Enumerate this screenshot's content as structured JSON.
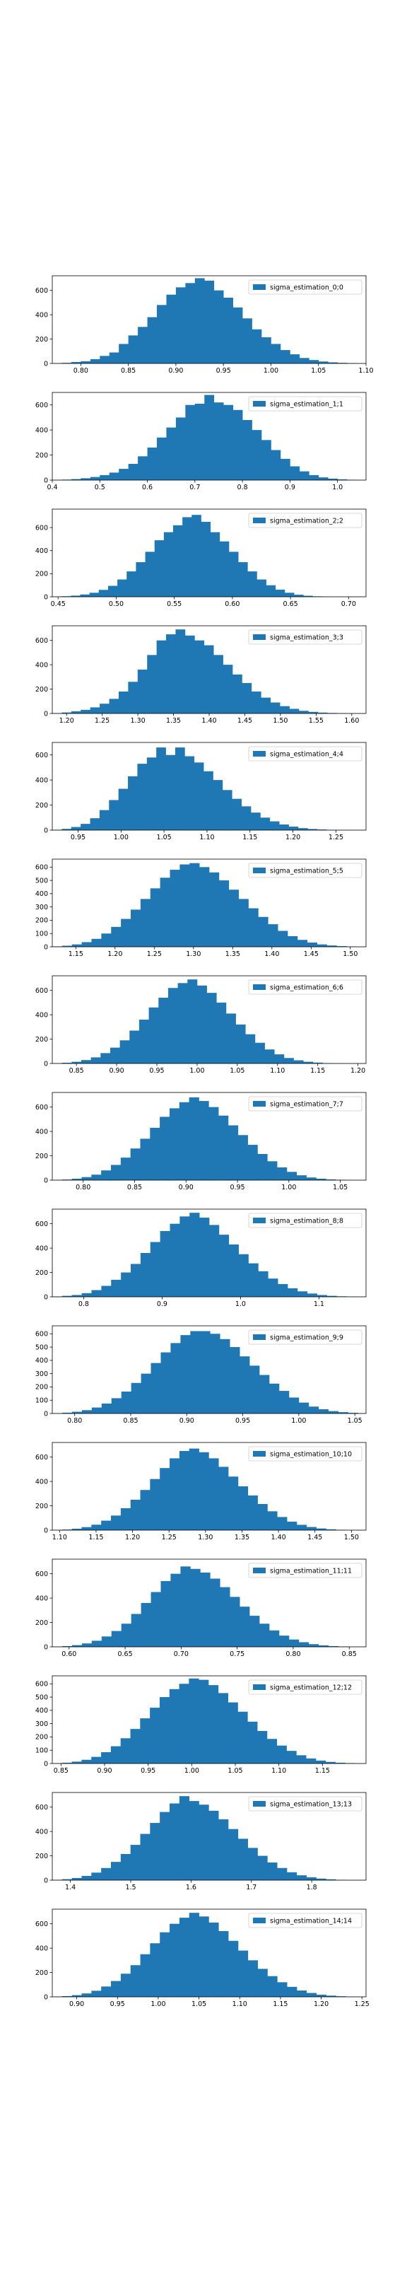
{
  "style": {
    "bar_color": "#1f77b4",
    "axis_color": "#000000",
    "background": "#ffffff"
  },
  "chart_data": [
    {
      "type": "bar",
      "legend": "sigma_estimation_0;0",
      "legend_loc": "upper right",
      "xlim": [
        0.77,
        1.1
      ],
      "ylim": [
        0,
        720
      ],
      "xticks": [
        0.8,
        0.85,
        0.9,
        0.95,
        1.0,
        1.05,
        1.1
      ],
      "xtick_labels": [
        "0.80",
        "0.85",
        "0.90",
        "0.95",
        "1.00",
        "1.05",
        "1.10"
      ],
      "yticks": [
        0,
        200,
        400,
        600
      ],
      "ytick_labels": [
        "0",
        "200",
        "400",
        "600"
      ],
      "bin_start": 0.77,
      "bin_width": 0.01,
      "values": [
        2,
        5,
        12,
        18,
        35,
        62,
        90,
        160,
        230,
        300,
        380,
        480,
        565,
        625,
        660,
        700,
        680,
        600,
        540,
        460,
        370,
        280,
        215,
        160,
        110,
        75,
        45,
        28,
        16,
        9,
        5,
        3,
        1
      ]
    },
    {
      "type": "bar",
      "legend": "sigma_estimation_1;1",
      "legend_loc": "upper right",
      "xlim": [
        0.4,
        1.06
      ],
      "ylim": [
        0,
        700
      ],
      "xticks": [
        0.4,
        0.5,
        0.6,
        0.7,
        0.8,
        0.9,
        1.0
      ],
      "xtick_labels": [
        "0.4",
        "0.5",
        "0.6",
        "0.7",
        "0.8",
        "0.9",
        "1.0"
      ],
      "yticks": [
        0,
        200,
        400,
        600
      ],
      "ytick_labels": [
        "0",
        "200",
        "400",
        "600"
      ],
      "bin_start": 0.4,
      "bin_width": 0.02,
      "values": [
        2,
        4,
        8,
        15,
        25,
        40,
        60,
        90,
        130,
        190,
        260,
        340,
        420,
        500,
        600,
        610,
        680,
        620,
        600,
        560,
        480,
        400,
        320,
        240,
        170,
        110,
        70,
        40,
        22,
        12,
        6,
        3,
        1
      ]
    },
    {
      "type": "bar",
      "legend": "sigma_estimation_2;2",
      "legend_loc": "upper right",
      "xlim": [
        0.445,
        0.715
      ],
      "ylim": [
        0,
        760
      ],
      "xticks": [
        0.45,
        0.5,
        0.55,
        0.6,
        0.65,
        0.7
      ],
      "xtick_labels": [
        "0.45",
        "0.50",
        "0.55",
        "0.60",
        "0.65",
        "0.70"
      ],
      "yticks": [
        0,
        200,
        400,
        600
      ],
      "ytick_labels": [
        "0",
        "200",
        "400",
        "600"
      ],
      "bin_start": 0.445,
      "bin_width": 0.008,
      "values": [
        2,
        5,
        10,
        20,
        35,
        60,
        95,
        150,
        220,
        300,
        390,
        490,
        560,
        620,
        690,
        710,
        650,
        560,
        480,
        390,
        300,
        220,
        150,
        100,
        62,
        35,
        18,
        9,
        4,
        2,
        1,
        1,
        1,
        1
      ]
    },
    {
      "type": "bar",
      "legend": "sigma_estimation_3;3",
      "legend_loc": "upper right",
      "xlim": [
        1.18,
        1.62
      ],
      "ylim": [
        0,
        720
      ],
      "xticks": [
        1.2,
        1.25,
        1.3,
        1.35,
        1.4,
        1.45,
        1.5,
        1.55,
        1.6
      ],
      "xtick_labels": [
        "1.20",
        "1.25",
        "1.30",
        "1.35",
        "1.40",
        "1.45",
        "1.50",
        "1.55",
        "1.60"
      ],
      "yticks": [
        0,
        200,
        400,
        600
      ],
      "ytick_labels": [
        "0",
        "200",
        "400",
        "600"
      ],
      "bin_start": 1.18,
      "bin_width": 0.0133,
      "values": [
        3,
        8,
        18,
        30,
        50,
        80,
        120,
        180,
        260,
        360,
        480,
        600,
        650,
        690,
        640,
        600,
        560,
        480,
        400,
        320,
        250,
        180,
        130,
        90,
        60,
        38,
        22,
        13,
        7,
        4,
        2,
        1,
        1
      ]
    },
    {
      "type": "bar",
      "legend": "sigma_estimation_4;4",
      "legend_loc": "upper right",
      "xlim": [
        0.92,
        1.285
      ],
      "ylim": [
        0,
        700
      ],
      "xticks": [
        0.95,
        1.0,
        1.05,
        1.1,
        1.15,
        1.2,
        1.25
      ],
      "xtick_labels": [
        "0.95",
        "1.00",
        "1.05",
        "1.10",
        "1.15",
        "1.20",
        "1.25"
      ],
      "yticks": [
        0,
        200,
        400,
        600
      ],
      "ytick_labels": [
        "0",
        "200",
        "400",
        "600"
      ],
      "bin_start": 0.92,
      "bin_width": 0.011,
      "values": [
        3,
        10,
        25,
        50,
        95,
        160,
        240,
        330,
        430,
        530,
        580,
        660,
        600,
        660,
        590,
        540,
        470,
        400,
        320,
        250,
        190,
        140,
        100,
        70,
        45,
        28,
        16,
        9,
        5,
        2,
        1,
        1,
        1
      ]
    },
    {
      "type": "bar",
      "legend": "sigma_estimation_5;5",
      "legend_loc": "upper right",
      "xlim": [
        1.12,
        1.52
      ],
      "ylim": [
        0,
        660
      ],
      "xticks": [
        1.15,
        1.2,
        1.25,
        1.3,
        1.35,
        1.4,
        1.45,
        1.5
      ],
      "xtick_labels": [
        "1.15",
        "1.20",
        "1.25",
        "1.30",
        "1.35",
        "1.40",
        "1.45",
        "1.50"
      ],
      "yticks": [
        0,
        100,
        200,
        300,
        400,
        500,
        600
      ],
      "ytick_labels": [
        "0",
        "100",
        "200",
        "300",
        "400",
        "500",
        "600"
      ],
      "bin_start": 1.12,
      "bin_width": 0.0125,
      "values": [
        3,
        8,
        18,
        35,
        60,
        100,
        150,
        210,
        280,
        360,
        440,
        520,
        580,
        620,
        630,
        600,
        560,
        500,
        430,
        360,
        290,
        225,
        170,
        120,
        80,
        52,
        32,
        18,
        10,
        5,
        2,
        1
      ]
    },
    {
      "type": "bar",
      "legend": "sigma_estimation_6;6",
      "legend_loc": "upper right",
      "xlim": [
        0.82,
        1.21
      ],
      "ylim": [
        0,
        720
      ],
      "xticks": [
        0.85,
        0.9,
        0.95,
        1.0,
        1.05,
        1.1,
        1.15,
        1.2
      ],
      "xtick_labels": [
        "0.85",
        "0.90",
        "0.95",
        "1.00",
        "1.05",
        "1.10",
        "1.15",
        "1.20"
      ],
      "yticks": [
        0,
        200,
        400,
        600
      ],
      "ytick_labels": [
        "0",
        "200",
        "400",
        "600"
      ],
      "bin_start": 0.82,
      "bin_width": 0.012,
      "values": [
        2,
        6,
        14,
        28,
        50,
        85,
        130,
        190,
        270,
        360,
        460,
        540,
        620,
        660,
        690,
        640,
        580,
        500,
        410,
        320,
        240,
        170,
        115,
        75,
        45,
        26,
        14,
        7,
        3,
        2,
        1,
        1,
        1
      ]
    },
    {
      "type": "bar",
      "legend": "sigma_estimation_7;7",
      "legend_loc": "upper right",
      "xlim": [
        0.77,
        1.075
      ],
      "ylim": [
        0,
        720
      ],
      "xticks": [
        0.8,
        0.85,
        0.9,
        0.95,
        1.0,
        1.05
      ],
      "xtick_labels": [
        "0.80",
        "0.85",
        "0.90",
        "0.95",
        "1.00",
        "1.05"
      ],
      "yticks": [
        0,
        200,
        400,
        600
      ],
      "ytick_labels": [
        "0",
        "200",
        "400",
        "600"
      ],
      "bin_start": 0.77,
      "bin_width": 0.0095,
      "values": [
        2,
        5,
        12,
        25,
        45,
        80,
        125,
        185,
        260,
        340,
        430,
        520,
        590,
        640,
        680,
        650,
        600,
        530,
        450,
        370,
        290,
        215,
        155,
        105,
        68,
        40,
        22,
        12,
        6,
        3,
        1,
        1
      ]
    },
    {
      "type": "bar",
      "legend": "sigma_estimation_8;8",
      "legend_loc": "upper right",
      "xlim": [
        0.76,
        1.16
      ],
      "ylim": [
        0,
        720
      ],
      "xticks": [
        0.8,
        0.9,
        1.0,
        1.1
      ],
      "xtick_labels": [
        "0.8",
        "0.9",
        "1.0",
        "1.1"
      ],
      "yticks": [
        0,
        200,
        400,
        600
      ],
      "ytick_labels": [
        "0",
        "200",
        "400",
        "600"
      ],
      "bin_start": 0.76,
      "bin_width": 0.0125,
      "values": [
        3,
        8,
        15,
        30,
        55,
        90,
        140,
        200,
        270,
        360,
        450,
        540,
        600,
        660,
        690,
        650,
        590,
        510,
        430,
        350,
        275,
        210,
        150,
        105,
        70,
        45,
        27,
        15,
        8,
        4,
        2,
        1
      ]
    },
    {
      "type": "bar",
      "legend": "sigma_estimation_9;9",
      "legend_loc": "upper right",
      "xlim": [
        0.78,
        1.06
      ],
      "ylim": [
        0,
        660
      ],
      "xticks": [
        0.8,
        0.85,
        0.9,
        0.95,
        1.0,
        1.05
      ],
      "xtick_labels": [
        "0.80",
        "0.85",
        "0.90",
        "0.95",
        "1.00",
        "1.05"
      ],
      "yticks": [
        0,
        100,
        200,
        300,
        400,
        500,
        600
      ],
      "ytick_labels": [
        "0",
        "100",
        "200",
        "300",
        "400",
        "500",
        "600"
      ],
      "bin_start": 0.78,
      "bin_width": 0.0088,
      "values": [
        2,
        6,
        13,
        25,
        45,
        75,
        115,
        165,
        230,
        300,
        380,
        460,
        530,
        590,
        620,
        620,
        600,
        560,
        500,
        430,
        360,
        290,
        225,
        170,
        120,
        82,
        52,
        32,
        18,
        10,
        5,
        2
      ]
    },
    {
      "type": "bar",
      "legend": "sigma_estimation_10;10",
      "legend_loc": "upper right",
      "xlim": [
        1.09,
        1.52
      ],
      "ylim": [
        0,
        720
      ],
      "xticks": [
        1.1,
        1.15,
        1.2,
        1.25,
        1.3,
        1.35,
        1.4,
        1.45,
        1.5
      ],
      "xtick_labels": [
        "1.10",
        "1.15",
        "1.20",
        "1.25",
        "1.30",
        "1.35",
        "1.40",
        "1.45",
        "1.50"
      ],
      "yticks": [
        0,
        200,
        400,
        600
      ],
      "ytick_labels": [
        "0",
        "200",
        "400",
        "600"
      ],
      "bin_start": 1.09,
      "bin_width": 0.0134,
      "values": [
        2,
        5,
        12,
        25,
        45,
        78,
        120,
        180,
        250,
        330,
        420,
        510,
        590,
        650,
        670,
        640,
        590,
        520,
        440,
        360,
        285,
        215,
        155,
        108,
        70,
        44,
        26,
        14,
        7,
        3,
        1,
        1
      ]
    },
    {
      "type": "bar",
      "legend": "sigma_estimation_11;11",
      "legend_loc": "upper right",
      "xlim": [
        0.585,
        0.865
      ],
      "ylim": [
        0,
        720
      ],
      "xticks": [
        0.6,
        0.65,
        0.7,
        0.75,
        0.8,
        0.85
      ],
      "xtick_labels": [
        "0.60",
        "0.65",
        "0.70",
        "0.75",
        "0.80",
        "0.85"
      ],
      "yticks": [
        0,
        200,
        400,
        600
      ],
      "ytick_labels": [
        "0",
        "200",
        "400",
        "600"
      ],
      "bin_start": 0.585,
      "bin_width": 0.0088,
      "values": [
        2,
        6,
        14,
        28,
        50,
        85,
        130,
        190,
        270,
        360,
        450,
        540,
        600,
        660,
        640,
        610,
        560,
        490,
        410,
        330,
        255,
        190,
        135,
        92,
        60,
        38,
        22,
        12,
        6,
        3,
        1,
        1
      ]
    },
    {
      "type": "bar",
      "legend": "sigma_estimation_12;12",
      "legend_loc": "upper right",
      "xlim": [
        0.84,
        1.2
      ],
      "ylim": [
        0,
        660
      ],
      "xticks": [
        0.85,
        0.9,
        0.95,
        1.0,
        1.05,
        1.1,
        1.15
      ],
      "xtick_labels": [
        "0.85",
        "0.90",
        "0.95",
        "1.00",
        "1.05",
        "1.10",
        "1.15"
      ],
      "yticks": [
        0,
        100,
        200,
        300,
        400,
        500,
        600
      ],
      "ytick_labels": [
        "0",
        "100",
        "200",
        "300",
        "400",
        "500",
        "600"
      ],
      "bin_start": 0.84,
      "bin_width": 0.0112,
      "values": [
        2,
        6,
        14,
        28,
        50,
        85,
        130,
        190,
        260,
        340,
        420,
        500,
        560,
        600,
        640,
        630,
        590,
        530,
        460,
        390,
        315,
        245,
        185,
        135,
        95,
        62,
        38,
        22,
        12,
        6,
        3,
        1
      ]
    },
    {
      "type": "bar",
      "legend": "sigma_estimation_13;13",
      "legend_loc": "upper right",
      "xlim": [
        1.37,
        1.89
      ],
      "ylim": [
        0,
        720
      ],
      "xticks": [
        1.4,
        1.5,
        1.6,
        1.7,
        1.8
      ],
      "xtick_labels": [
        "1.4",
        "1.5",
        "1.6",
        "1.7",
        "1.8"
      ],
      "yticks": [
        0,
        200,
        400,
        600
      ],
      "ytick_labels": [
        "0",
        "200",
        "400",
        "600"
      ],
      "bin_start": 1.37,
      "bin_width": 0.0162,
      "values": [
        3,
        8,
        18,
        35,
        62,
        100,
        150,
        215,
        290,
        380,
        470,
        560,
        630,
        690,
        650,
        620,
        570,
        500,
        420,
        340,
        265,
        200,
        145,
        100,
        65,
        40,
        24,
        13,
        7,
        3,
        1,
        1
      ]
    },
    {
      "type": "bar",
      "legend": "sigma_estimation_14;14",
      "legend_loc": "upper right",
      "xlim": [
        0.87,
        1.255
      ],
      "ylim": [
        0,
        720
      ],
      "xticks": [
        0.9,
        0.95,
        1.0,
        1.05,
        1.1,
        1.15,
        1.2,
        1.25
      ],
      "xtick_labels": [
        "0.90",
        "0.95",
        "1.00",
        "1.05",
        "1.10",
        "1.15",
        "1.20",
        "1.25"
      ],
      "yticks": [
        0,
        200,
        400,
        600
      ],
      "ytick_labels": [
        "0",
        "200",
        "400",
        "600"
      ],
      "bin_start": 0.87,
      "bin_width": 0.012,
      "values": [
        2,
        6,
        14,
        28,
        50,
        85,
        130,
        190,
        260,
        350,
        440,
        530,
        600,
        650,
        690,
        660,
        610,
        540,
        460,
        380,
        300,
        230,
        170,
        120,
        82,
        52,
        32,
        18,
        10,
        5,
        2,
        1
      ]
    }
  ]
}
